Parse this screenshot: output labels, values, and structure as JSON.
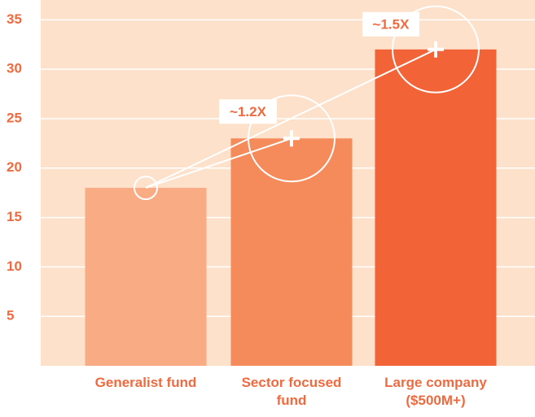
{
  "chart_data": {
    "type": "bar",
    "categories": [
      "Generalist fund",
      "Sector focused fund",
      "Large company ($500M+)"
    ],
    "values": [
      18,
      23,
      32
    ],
    "colors": [
      "#f9ab84",
      "#f58a5a",
      "#f26338"
    ],
    "ylim": [
      0,
      37
    ],
    "yticks": [
      5,
      10,
      15,
      20,
      25,
      30,
      35
    ],
    "grid": true,
    "annotations": [
      "~1.2X",
      "~1.5X"
    ]
  }
}
